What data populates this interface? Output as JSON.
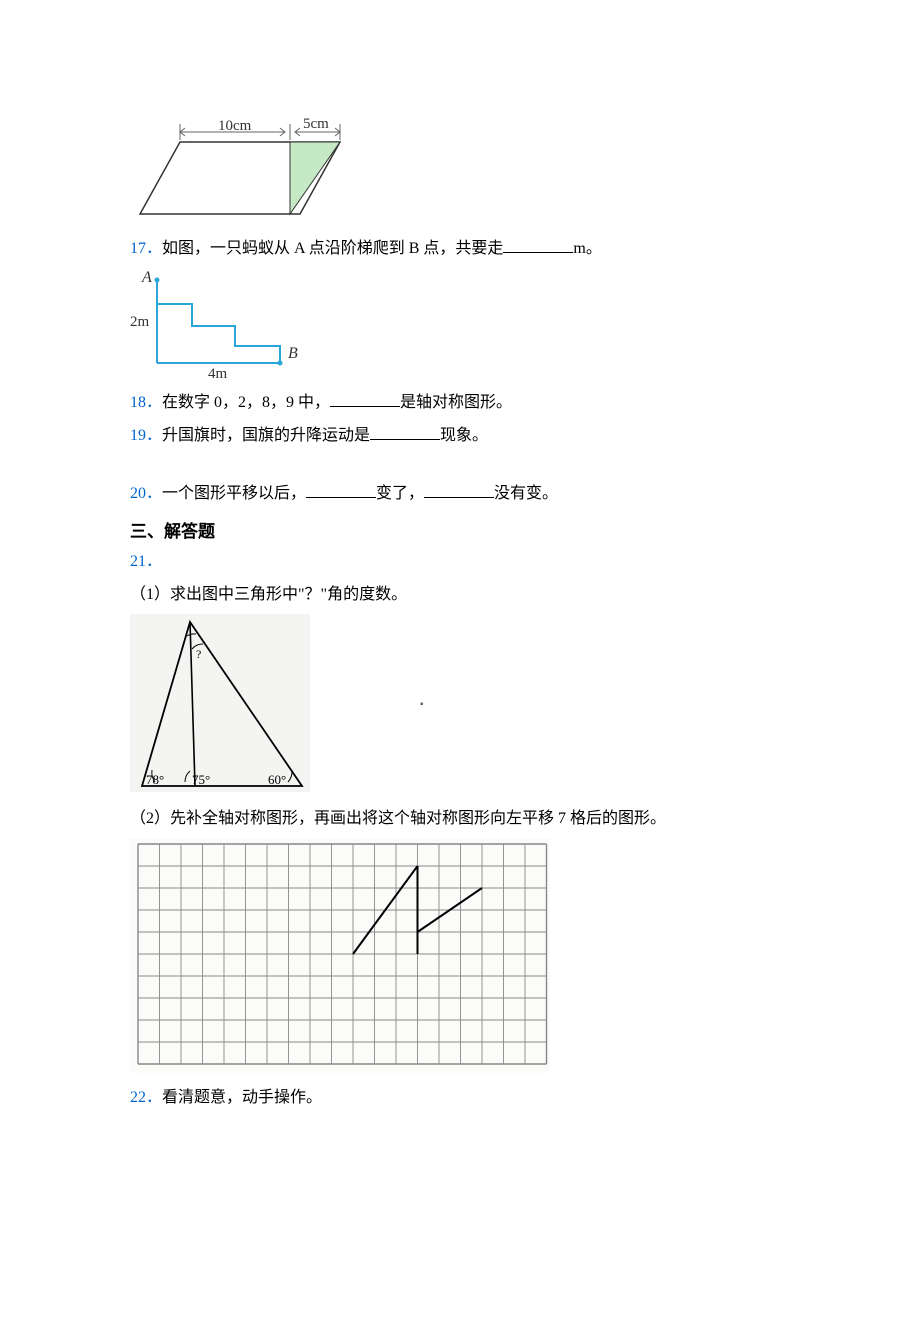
{
  "fig16": {
    "label10": "10cm",
    "label5": "5cm",
    "fill": "#c5e8c5",
    "stroke": "#333333",
    "arrow": "#666666"
  },
  "q17": {
    "num": "17．",
    "text_a": "如图，一只蚂蚁从 A 点沿阶梯爬到 B 点，共要走",
    "text_b": "m。",
    "blank_width": 70
  },
  "fig17": {
    "labelA": "A",
    "labelB": "B",
    "label2m": "2m",
    "label4m": "4m",
    "stroke": "#2aa5d8",
    "text": "#333333"
  },
  "q18": {
    "num": "18．",
    "text_a": "在数字 0，2，8，9 中，",
    "text_b": "是轴对称图形。",
    "blank_width": 70
  },
  "q19": {
    "num": "19．",
    "text_a": "升国旗时，国旗的升降运动是",
    "text_b": "现象。",
    "blank_width": 70
  },
  "q20": {
    "num": "20．",
    "text_a": "一个图形平移以后，",
    "text_b": "变了，",
    "text_c": "没有变。",
    "blank1_width": 70,
    "blank2_width": 70
  },
  "section3": "三、解答题",
  "q21": {
    "num": "21．",
    "part1": "（1）求出图中三角形中\"？\"角的度数。",
    "part2": "（2）先补全轴对称图形，再画出将这个轴对称图形向左平移 7 格后的图形。"
  },
  "fig21a": {
    "a78": "78°",
    "a75": "75°",
    "a60": "60°",
    "qmark": "?",
    "stroke": "#000000",
    "bg": "#f2f2f0"
  },
  "fig21b": {
    "grid_stroke": "#888888",
    "shape_stroke": "#000000",
    "rows": 10,
    "cols": 19
  },
  "q22": {
    "num": "22．",
    "text": "看清题意，动手操作。"
  },
  "centerdot": "▪"
}
